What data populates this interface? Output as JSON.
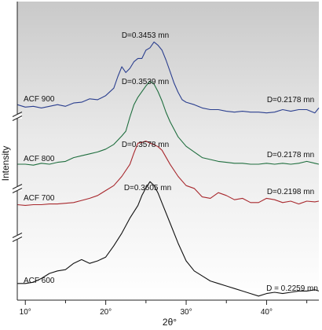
{
  "chart_data": {
    "type": "line",
    "xlabel": "2θ°",
    "ylabel": "Intensity",
    "xlim": [
      9,
      46.5
    ],
    "x_ticks": [
      10,
      20,
      30,
      40
    ],
    "x_tick_labels": [
      "10°",
      "20°",
      "30°",
      "40°"
    ],
    "grid": false,
    "background": "gradient grey to white",
    "axis_breaks": true,
    "series": [
      {
        "name": "ACF 900",
        "color": "#2b3f8f",
        "peak_label": "D=0.3453 mn",
        "end_label": "D=0.2178 mn",
        "x": [
          9,
          10,
          11,
          12,
          13,
          14,
          15,
          16,
          17,
          18,
          19,
          20,
          21,
          21.5,
          22,
          22.5,
          23,
          23.5,
          24,
          24.5,
          25,
          25.5,
          26,
          26.5,
          27,
          27.5,
          28,
          28.5,
          29,
          29.5,
          30,
          31,
          32,
          33,
          34,
          35,
          36,
          37,
          38,
          39,
          40,
          41,
          42,
          43,
          44,
          45,
          46,
          46.5
        ],
        "y": [
          0.16,
          0.13,
          0.14,
          0.12,
          0.14,
          0.16,
          0.14,
          0.18,
          0.19,
          0.23,
          0.22,
          0.27,
          0.36,
          0.5,
          0.62,
          0.55,
          0.6,
          0.68,
          0.72,
          0.72,
          0.82,
          0.85,
          0.92,
          0.88,
          0.82,
          0.7,
          0.56,
          0.42,
          0.31,
          0.22,
          0.19,
          0.16,
          0.12,
          0.1,
          0.1,
          0.08,
          0.07,
          0.08,
          0.07,
          0.07,
          0.06,
          0.07,
          0.1,
          0.08,
          0.1,
          0.1,
          0.06,
          0.12
        ]
      },
      {
        "name": "ACF 800",
        "color": "#1f6e3e",
        "peak_label": "D=0.3539 mn",
        "end_label": "D=0.2178 mn",
        "x": [
          9,
          10,
          11,
          12,
          13,
          14,
          15,
          16,
          17,
          18,
          19,
          20,
          21,
          22,
          22.5,
          23,
          23.5,
          24,
          24.5,
          25,
          25.5,
          26,
          26.5,
          27,
          27.5,
          28,
          28.5,
          29,
          30,
          31,
          32,
          33,
          34,
          35,
          36,
          37,
          38,
          39,
          40,
          41,
          42,
          43,
          44,
          45,
          46,
          46.5
        ],
        "y": [
          0.05,
          0.05,
          0.04,
          0.06,
          0.05,
          0.07,
          0.08,
          0.12,
          0.14,
          0.16,
          0.18,
          0.21,
          0.26,
          0.35,
          0.4,
          0.55,
          0.68,
          0.76,
          0.82,
          0.88,
          0.93,
          0.9,
          0.82,
          0.72,
          0.6,
          0.5,
          0.42,
          0.34,
          0.24,
          0.18,
          0.12,
          0.1,
          0.08,
          0.07,
          0.06,
          0.06,
          0.05,
          0.05,
          0.06,
          0.05,
          0.06,
          0.05,
          0.06,
          0.08,
          0.06,
          0.05
        ]
      },
      {
        "name": "ACF 700",
        "color": "#a8282d",
        "peak_label": "D=0.3578 mn",
        "end_label": "D=0.2198 mn",
        "x": [
          9,
          10,
          11,
          12,
          13,
          14,
          15,
          16,
          17,
          18,
          19,
          20,
          21,
          22,
          23,
          23.5,
          24,
          24.5,
          25,
          25.5,
          26,
          26.5,
          27,
          28,
          29,
          30,
          31,
          32,
          33,
          34,
          35,
          36,
          37,
          38,
          39,
          40,
          41,
          42,
          43,
          44,
          45,
          46,
          46.5
        ],
        "y": [
          0.05,
          0.04,
          0.05,
          0.05,
          0.06,
          0.06,
          0.07,
          0.08,
          0.11,
          0.14,
          0.18,
          0.25,
          0.32,
          0.45,
          0.62,
          0.78,
          0.92,
          0.93,
          0.95,
          0.92,
          0.9,
          0.87,
          0.82,
          0.62,
          0.45,
          0.32,
          0.28,
          0.16,
          0.14,
          0.22,
          0.18,
          0.12,
          0.14,
          0.08,
          0.08,
          0.14,
          0.12,
          0.08,
          0.1,
          0.06,
          0.1,
          0.09,
          0.1
        ]
      },
      {
        "name": "ACF 600",
        "color": "#111111",
        "peak_label": "D=0.3605 mn",
        "end_label": "D = 0.2259 mn",
        "x": [
          9,
          10,
          11,
          12,
          13,
          14,
          15,
          16,
          17,
          18,
          19,
          20,
          21,
          22,
          23,
          24,
          24.5,
          25,
          25.5,
          26,
          26.5,
          27,
          28,
          29,
          30,
          31,
          32,
          33,
          34,
          35,
          36,
          37,
          38,
          39,
          40,
          41,
          42,
          43,
          44,
          45,
          46,
          46.5
        ],
        "y": [
          0.12,
          0.12,
          0.13,
          0.16,
          0.2,
          0.22,
          0.23,
          0.28,
          0.31,
          0.28,
          0.3,
          0.33,
          0.42,
          0.52,
          0.64,
          0.74,
          0.82,
          0.88,
          0.93,
          0.9,
          0.84,
          0.76,
          0.6,
          0.44,
          0.3,
          0.22,
          0.18,
          0.14,
          0.12,
          0.1,
          0.08,
          0.06,
          0.04,
          0.02,
          0.04,
          0.05,
          0.04,
          0.05,
          0.06,
          0.06,
          0.07,
          0.06
        ]
      }
    ]
  }
}
